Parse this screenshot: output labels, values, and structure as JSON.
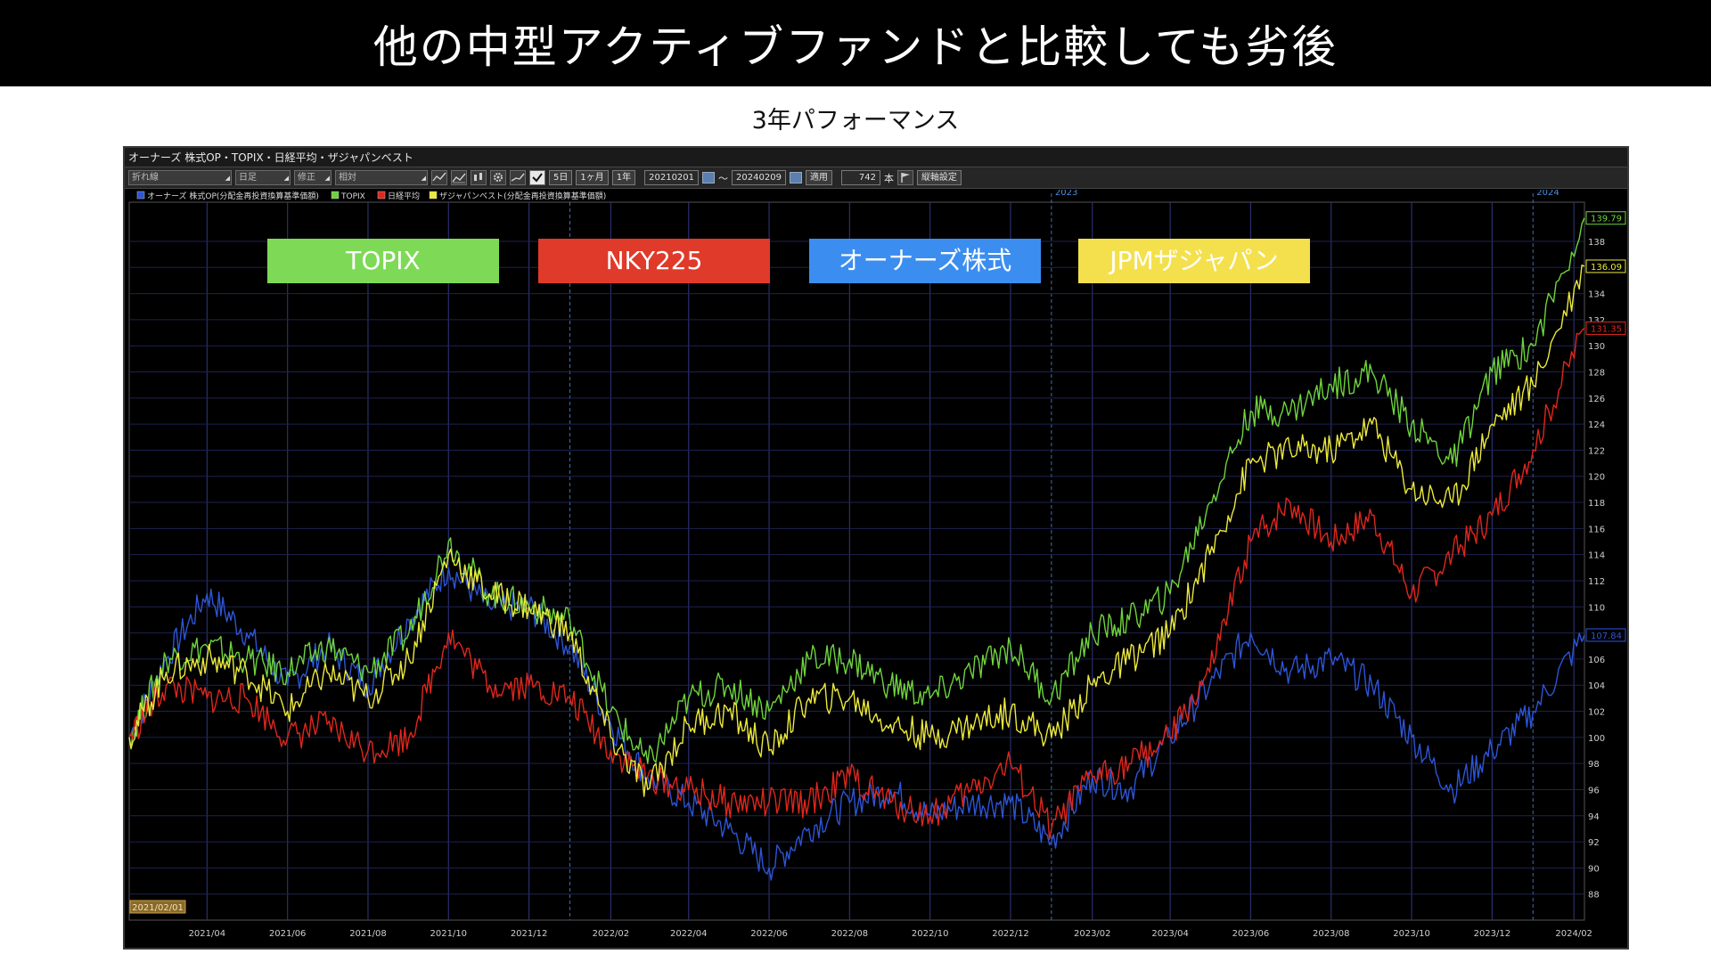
{
  "banner": {
    "title": "他の中型アクティブファンドと比較しても劣後"
  },
  "subtitle": "3年パフォーマンス",
  "window": {
    "title": "オーナーズ 株式OP・TOPIX・日経平均・ザジャパンベスト"
  },
  "toolbar": {
    "chart_type": "折れ線",
    "period_type": "日足",
    "adjust": "修正",
    "mode": "相対",
    "range_buttons": [
      "5日",
      "1ヶ月",
      "1年"
    ],
    "date_from": "20210201",
    "tilde": "～",
    "date_to": "20240209",
    "apply": "適用",
    "count": "742",
    "count_unit": "本",
    "axis_settings": "縦軸設定"
  },
  "icons": [
    "line-chart-icon",
    "bar-chart-icon",
    "candle-chart-icon",
    "settings-gear-icon",
    "trend-icon",
    "check-icon",
    "calendar-icon",
    "flag-icon"
  ],
  "chart_data": {
    "type": "line",
    "start_label": "2021/02/01",
    "year_markers": [
      "2023",
      "2024"
    ],
    "legend": [
      "オーナーズ 株式OP(分配金再投資換算基準価額)",
      "TOPIX",
      "日経平均",
      "ザジャパンベスト(分配金再投資換算基準価額)"
    ],
    "callouts": [
      {
        "label": "TOPIX",
        "color": "#7ed957"
      },
      {
        "label": "NKY225",
        "color": "#e03a2a"
      },
      {
        "label": "オーナーズ株式",
        "color": "#3b8ef0"
      },
      {
        "label": "JPMザジャパン",
        "color": "#f4e04d"
      }
    ],
    "x_ticks": [
      "2021/04",
      "2021/06",
      "2021/08",
      "2021/10",
      "2021/12",
      "2022/02",
      "2022/04",
      "2022/06",
      "2022/08",
      "2022/10",
      "2022/12",
      "2023/02",
      "2023/04",
      "2023/06",
      "2023/08",
      "2023/10",
      "2023/12",
      "2024/02"
    ],
    "x_dates": [
      "2021-02-01",
      "2021-03-01",
      "2021-04-01",
      "2021-05-01",
      "2021-06-01",
      "2021-07-01",
      "2021-08-01",
      "2021-09-01",
      "2021-10-01",
      "2021-11-01",
      "2021-12-01",
      "2022-01-01",
      "2022-02-01",
      "2022-03-01",
      "2022-04-01",
      "2022-05-01",
      "2022-06-01",
      "2022-07-01",
      "2022-08-01",
      "2022-09-01",
      "2022-10-01",
      "2022-11-01",
      "2022-12-01",
      "2023-01-01",
      "2023-02-01",
      "2023-03-01",
      "2023-04-01",
      "2023-05-01",
      "2023-06-01",
      "2023-07-01",
      "2023-08-01",
      "2023-09-01",
      "2023-10-01",
      "2023-11-01",
      "2023-12-01",
      "2024-01-01",
      "2024-02-09"
    ],
    "y_ticks": [
      88,
      90,
      92,
      94,
      96,
      98,
      100,
      102,
      104,
      106,
      108,
      110,
      112,
      114,
      116,
      118,
      120,
      122,
      124,
      126,
      128,
      130,
      132,
      134,
      136,
      138
    ],
    "ylim": [
      86,
      141
    ],
    "grid": true,
    "series": [
      {
        "name": "オーナーズ 株式OP(分配金再投資換算基準価額)",
        "color": "#2d55d6",
        "last_label": "107.84",
        "values": [
          100,
          106,
          111,
          108,
          104,
          107,
          104,
          109,
          113,
          110,
          110,
          107,
          101,
          97,
          95,
          93,
          90,
          93,
          95,
          96,
          94,
          95,
          95,
          92,
          97,
          96,
          100,
          104,
          108,
          105,
          106,
          104,
          100,
          96,
          99,
          102,
          107.84
        ]
      },
      {
        "name": "TOPIX",
        "color": "#6fd43c",
        "last_label": "139.79",
        "values": [
          100,
          106,
          107,
          106,
          105,
          107,
          105,
          108,
          115,
          111,
          110,
          109,
          102,
          98,
          103,
          104,
          102,
          106,
          106,
          104,
          103,
          105,
          107,
          103,
          108,
          109,
          111,
          118,
          125,
          125,
          127,
          128,
          124,
          121,
          128,
          130,
          139.79
        ]
      },
      {
        "name": "日経平均",
        "color": "#e0271c",
        "last_label": "131.35",
        "values": [
          100,
          104,
          103,
          103,
          100,
          101,
          99,
          100,
          108,
          104,
          104,
          103,
          99,
          97,
          96,
          95,
          95,
          95,
          97,
          95,
          94,
          96,
          98,
          93,
          97,
          98,
          100,
          105,
          115,
          118,
          115,
          117,
          111,
          114,
          117,
          122,
          131.35
        ]
      },
      {
        "name": "ザジャパンベスト(分配金再投資換算基準価額)",
        "color": "#ecea3a",
        "last_label": "136.09",
        "values": [
          100,
          105,
          106,
          105,
          102,
          105,
          103,
          106,
          114,
          111,
          110,
          108,
          100,
          96,
          101,
          102,
          99,
          103,
          103,
          101,
          100,
          101,
          102,
          100,
          104,
          106,
          108,
          114,
          121,
          122,
          122,
          124,
          119,
          118,
          124,
          127,
          136.09
        ]
      }
    ]
  }
}
